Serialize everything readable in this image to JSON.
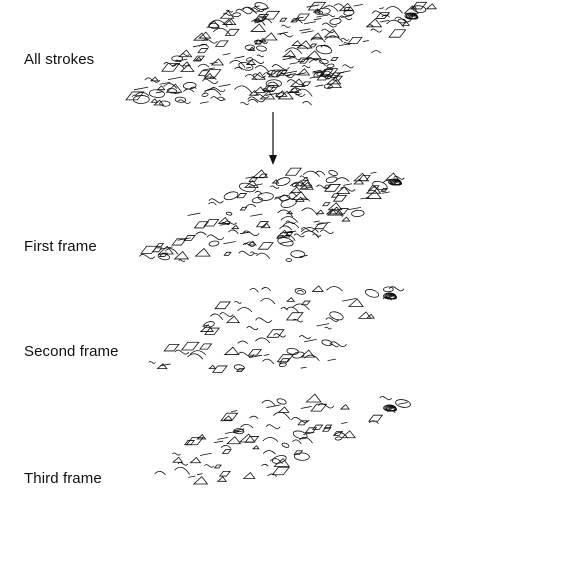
{
  "labels": {
    "all_strokes": "All strokes",
    "first_frame": "First frame",
    "second_frame": "Second frame",
    "third_frame": "Third frame"
  },
  "colors": {
    "stroke": "#111111",
    "background": "#ffffff"
  }
}
